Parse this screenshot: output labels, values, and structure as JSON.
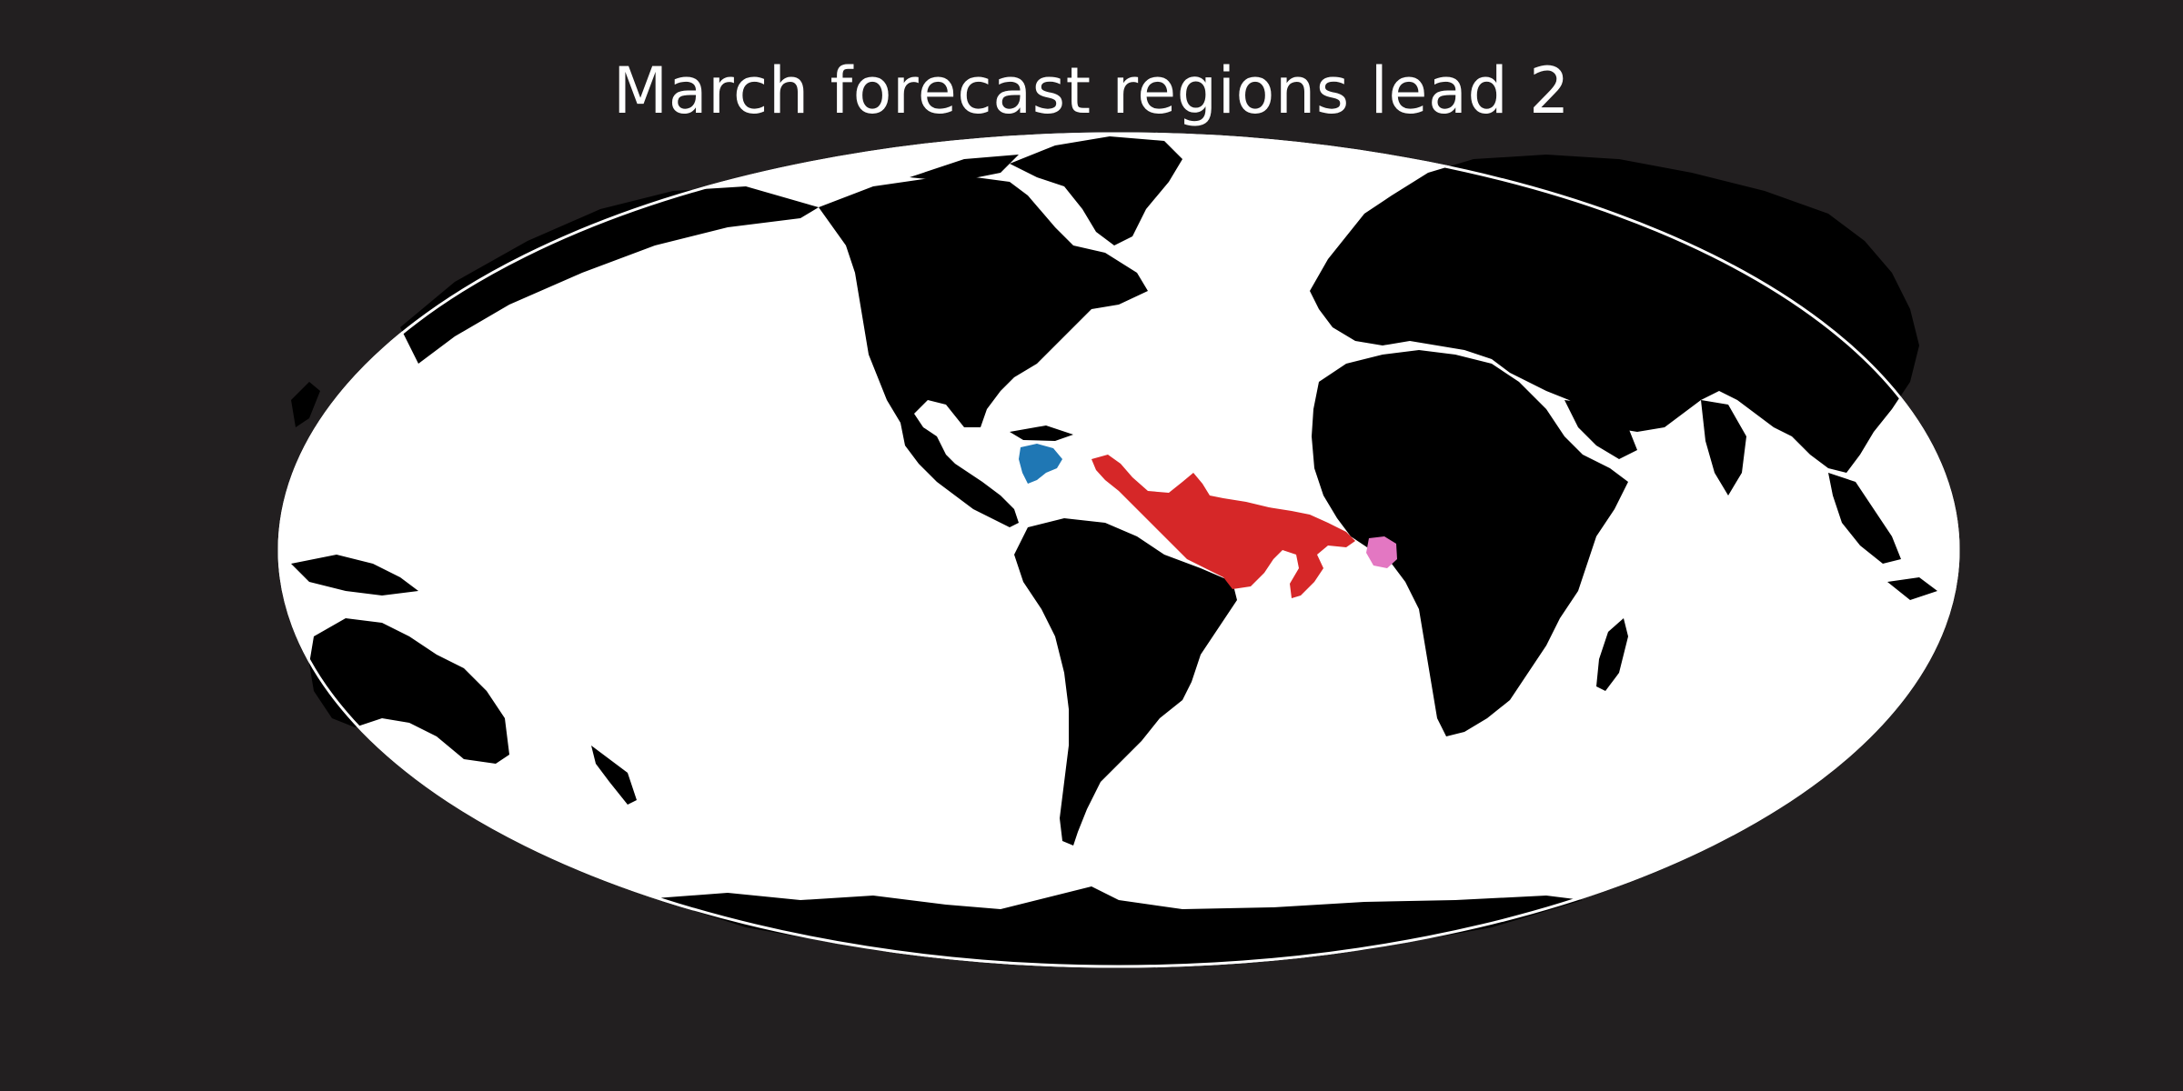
{
  "title": "March forecast regions lead 2",
  "map": {
    "projection": "mollweide",
    "central_longitude": "-60",
    "ocean_color": "#ffffff",
    "land_color": "#000000",
    "outline_color": "#ffffff",
    "background_color": "#221f20"
  },
  "regions": [
    {
      "id": "caribbean",
      "color": "#1f77b4",
      "location": "Western Caribbean Sea"
    },
    {
      "id": "tropical-atlantic",
      "color": "#d62728",
      "location": "Tropical Atlantic band"
    },
    {
      "id": "gulf-of-guinea",
      "color": "#e377c2",
      "location": "Gulf of Guinea"
    }
  ]
}
